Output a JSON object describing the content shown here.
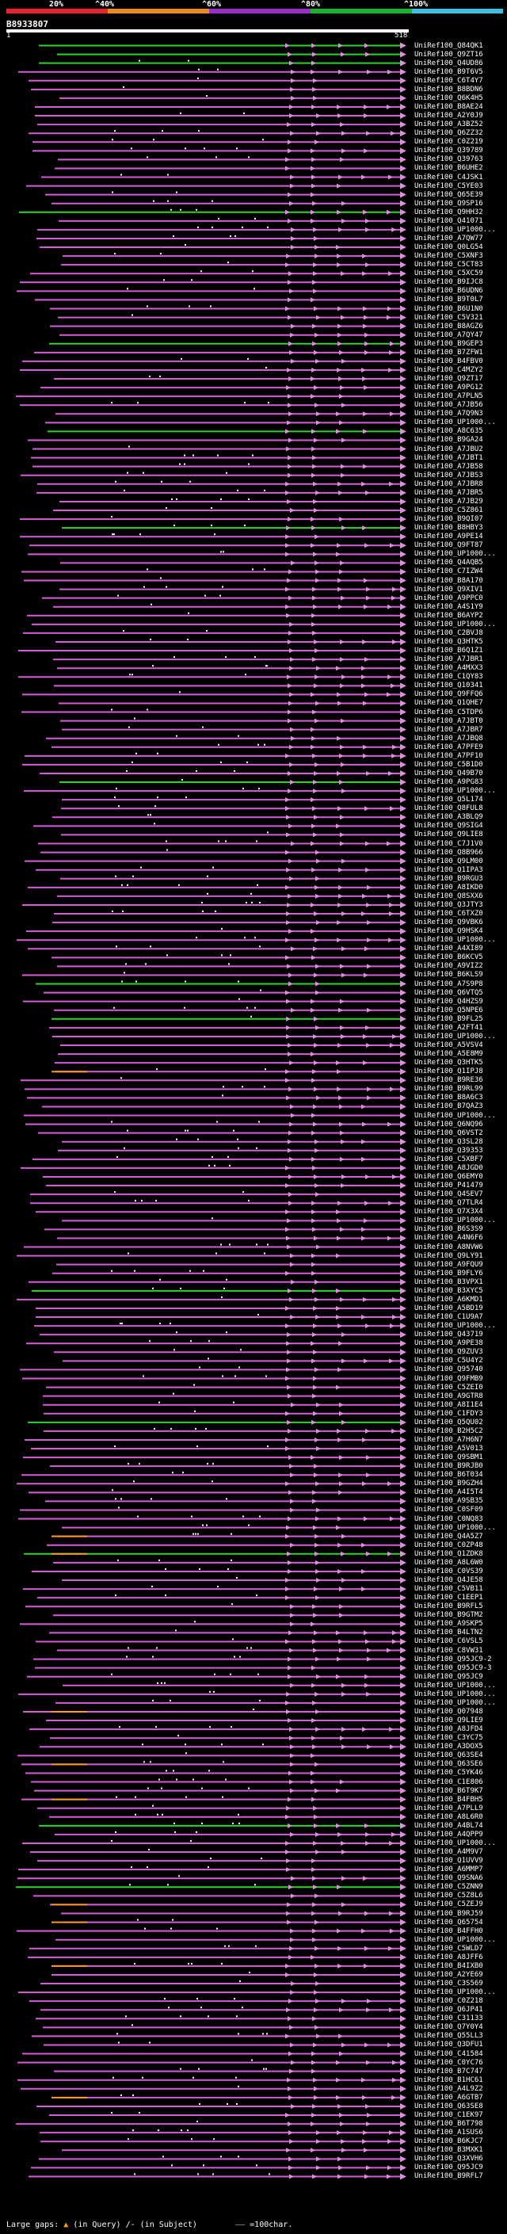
{
  "scale": {
    "labels": [
      "20%",
      "^40%",
      "^60%",
      "^80%",
      "^100%"
    ],
    "colors": [
      "#e8242f",
      "#ef8a1f",
      "#9b2fc9",
      "#19b32b",
      "#3ec0e0"
    ]
  },
  "query": {
    "id": "B8933807",
    "start": "1",
    "end": "518"
  },
  "colors": {
    "magenta": "#d65cd6",
    "green": "#2bd42b",
    "orange": "#ff9a1a",
    "arrow": "#e08ce0"
  },
  "hits": [
    "UniRef100_Q84QK1",
    "UniRef100_Q9ZT16",
    "UniRef100_Q4UD86",
    "UniRef100_B9T6V5",
    "UniRef100_C6T4Y7",
    "UniRef100_B8BDN6",
    "UniRef100_Q6K4H5",
    "UniRef100_B8AE24",
    "UniRef100_A2Y0J9",
    "UniRef100_A3BZ52",
    "UniRef100_Q6ZZ32",
    "UniRef100_C0Z219",
    "UniRef100_Q39789",
    "UniRef100_Q39763",
    "UniRef100_B6UHE2",
    "UniRef100_C4JSK1",
    "UniRef100_C5YE03",
    "UniRef100_Q65E39",
    "UniRef100_Q9SP16",
    "UniRef100_Q9HH32",
    "UniRef100_Q41071",
    "UniRef100_UP1000...",
    "UniRef100_A7QW77",
    "UniRef100_Q0LG54",
    "UniRef100_C5XNF3",
    "UniRef100_C5CT83",
    "UniRef100_C5XC59",
    "UniRef100_B9IJC8",
    "UniRef100_B6UDN6",
    "UniRef100_B9T0L7",
    "UniRef100_B6U1N0",
    "UniRef100_C5V321",
    "UniRef100_B8AGZ6",
    "UniRef100_A7QY47",
    "UniRef100_B9GEP3",
    "UniRef100_B7ZFW1",
    "UniRef100_B4FBV0",
    "UniRef100_C4MZY2",
    "UniRef100_Q9ZT17",
    "UniRef100_A9PG12",
    "UniRef100_A7PLN5",
    "UniRef100_A7JB56",
    "UniRef100_A7Q9N3",
    "UniRef100_UP1000...",
    "UniRef100_A8C635",
    "UniRef100_B9GA24",
    "UniRef100_A7JBU2",
    "UniRef100_A7JBT1",
    "UniRef100_A7JB58",
    "UniRef100_A7JBS3",
    "UniRef100_A7JBR8",
    "UniRef100_A7JBR5",
    "UniRef100_A7JB29",
    "UniRef100_C5Z861",
    "UniRef100_B9QI07",
    "UniRef100_B8HBY3",
    "UniRef100_A9PE14",
    "UniRef100_Q9FT87",
    "UniRef100_UP1000...",
    "UniRef100_Q4AQB5",
    "UniRef100_C7IZW4",
    "UniRef100_B8A170",
    "UniRef100_Q9XIV1",
    "UniRef100_A9PPC0",
    "UniRef100_A4S1Y9",
    "UniRef100_B6AYP2",
    "UniRef100_UP1000...",
    "UniRef100_C2BVJ8",
    "UniRef100_Q3HTK5",
    "UniRef100_B6Q1Z1",
    "UniRef100_A7JBR1",
    "UniRef100_A4MXX3",
    "UniRef100_C1QY83",
    "UniRef100_Q10341",
    "UniRef100_Q9FFQ6",
    "UniRef100_Q1QHE7",
    "UniRef100_C5TDP6",
    "UniRef100_A7JBT0",
    "UniRef100_A7JBR7",
    "UniRef100_A7JBQ8",
    "UniRef100_A7PFE9",
    "UniRef100_A7PF10",
    "UniRef100_C5B1D0",
    "UniRef100_Q49B70",
    "UniRef100_A9PG83",
    "UniRef100_UP1000...",
    "UniRef100_Q5L174",
    "UniRef100_Q8FUL8",
    "UniRef100_A3BLQ9",
    "UniRef100_Q9SIG4",
    "UniRef100_Q9LIE8",
    "UniRef100_C7J1V0",
    "UniRef100_Q8B966",
    "UniRef100_Q9LM00",
    "UniRef100_Q1IPA3",
    "UniRef100_B9RGU3",
    "UniRef100_A8IKD0",
    "UniRef100_Q8SXX6",
    "UniRef100_Q3JTY3",
    "UniRef100_C6TXZ0",
    "UniRef100_Q9VBK6",
    "UniRef100_Q9HSK4",
    "UniRef100_UP1000...",
    "UniRef100_A4XI89",
    "UniRef100_B6KCV5",
    "UniRef100_A9VIZ2",
    "UniRef100_B6KLS9",
    "UniRef100_A7S9P8",
    "UniRef100_Q6VTQ5",
    "UniRef100_Q4HZS9",
    "UniRef100_Q5NPE6",
    "UniRef100_B9FL25",
    "UniRef100_A2FT41",
    "UniRef100_UP1000...",
    "UniRef100_A5VSV4",
    "UniRef100_A5E8M9",
    "UniRef100_Q3HTK5",
    "UniRef100_Q1IPJ8",
    "UniRef100_B9RE36",
    "UniRef100_B9RL99",
    "UniRef100_B8A6C3",
    "UniRef100_B7QAZ3",
    "UniRef100_UP1000...",
    "UniRef100_Q6NQ96",
    "UniRef100_Q6VST2",
    "UniRef100_Q3SL28",
    "UniRef100_Q39353",
    "UniRef100_C5XBF7",
    "UniRef100_A8JGD0",
    "UniRef100_Q6EMY0",
    "UniRef100_P41479",
    "UniRef100_Q4SEV7",
    "UniRef100_Q7TLR4",
    "UniRef100_Q7X3X4",
    "UniRef100_UP1000...",
    "UniRef100_B6S3S9",
    "UniRef100_A4N6F6",
    "UniRef100_A8NVW6",
    "UniRef100_Q9LY91",
    "UniRef100_A9FQU9",
    "UniRef100_B9FLY6",
    "UniRef100_B3VPX1",
    "UniRef100_B3XYC5",
    "UniRef100_A6KMD1",
    "UniRef100_A5BD19",
    "UniRef100_C1U9A7",
    "UniRef100_UP1000...",
    "UniRef100_Q43719",
    "UniRef100_A9PE38",
    "UniRef100_Q9ZUV3",
    "UniRef100_C5U4Y2",
    "UniRef100_Q95740",
    "UniRef100_Q9FMB9",
    "UniRef100_C5ZEI0",
    "UniRef100_A9GTR8",
    "UniRef100_A8I1E4",
    "UniRef100_C1FDY3",
    "UniRef100_Q5QU02",
    "UniRef100_B2H5C2",
    "UniRef100_A7H6N7",
    "UniRef100_A5V013",
    "UniRef100_Q9SBM1",
    "UniRef100_B9RJB0",
    "UniRef100_B6T034",
    "UniRef100_B9GZH4",
    "UniRef100_A4I5T4",
    "UniRef100_A9SB35",
    "UniRef100_C0SF09",
    "UniRef100_C0NQ83",
    "UniRef100_UP1000...",
    "UniRef100_Q4A5Z7",
    "UniRef100_C0ZP48",
    "UniRef100_Q1ZDK8",
    "UniRef100_A8L6W0",
    "UniRef100_C0VS39",
    "UniRef100_Q4JE58",
    "UniRef100_C5VB11",
    "UniRef100_C1EEP1",
    "UniRef100_B9RFL5",
    "UniRef100_B9GTM2",
    "UniRef100_A9SKP5",
    "UniRef100_B4LTN2",
    "UniRef100_C6VSL5",
    "UniRef100_C8VW31",
    "UniRef100_Q95JC9-2",
    "UniRef100_Q95JC9-3",
    "UniRef100_Q95JC9",
    "UniRef100_UP1000...",
    "UniRef100_UP1000...",
    "UniRef100_UP1000...",
    "UniRef100_Q07948",
    "UniRef100_Q9LIE9",
    "UniRef100_A8JFD4",
    "UniRef100_C3YC75",
    "UniRef100_A3DOX5",
    "UniRef100_Q63SE4",
    "UniRef100_Q63SE6",
    "UniRef100_C5YK46",
    "UniRef100_C1E806",
    "UniRef100_B6T9K7",
    "UniRef100_B4FBH5",
    "UniRef100_A7PLL9",
    "UniRef100_A8L6R0",
    "UniRef100_A4BL74",
    "UniRef100_A4QPP9",
    "UniRef100_UP1000...",
    "UniRef100_A4M9V7",
    "UniRef100_Q1UVV9",
    "UniRef100_A6MMP7",
    "UniRef100_Q9SNA6",
    "UniRef100_C5ZNN9",
    "UniRef100_C5Z8L6",
    "UniRef100_C5ZEJ9",
    "UniRef100_B9RJ59",
    "UniRef100_Q65754",
    "UniRef100_B4FFH0",
    "UniRef100_UP1000...",
    "UniRef100_C5WLD7",
    "UniRef100_A8JFF6",
    "UniRef100_B4IXB0",
    "UniRef100_A2YE69",
    "UniRef100_C3S569",
    "UniRef100_UP1000...",
    "UniRef100_C0Z218",
    "UniRef100_Q6JP41",
    "UniRef100_C31133",
    "UniRef100_Q7Y0Y4",
    "UniRef100_Q55LL3",
    "UniRef100_Q3DFU1",
    "UniRef100_C41584",
    "UniRef100_C0YC76",
    "UniRef100_B7C747",
    "UniRef100_B1HC61",
    "UniRef100_A4L9Z2",
    "UniRef100_A6GTB7",
    "UniRef100_Q63SE8",
    "UniRef100_C1EK97",
    "UniRef100_B6T798",
    "UniRef100_A1SUS6",
    "UniRef100_B6KJC7",
    "UniRef100_B3MXK1",
    "UniRef100_Q3XVH6",
    "UniRef100_Q95JC9",
    "UniRef100_B9RFL7"
  ],
  "legend": {
    "text_prefix": "Large gaps:",
    "query_gap": "(in Query)",
    "separator": "/-",
    "subject_gap": "(in Subject)",
    "key_mark": "——",
    "key_text": "=100char."
  }
}
